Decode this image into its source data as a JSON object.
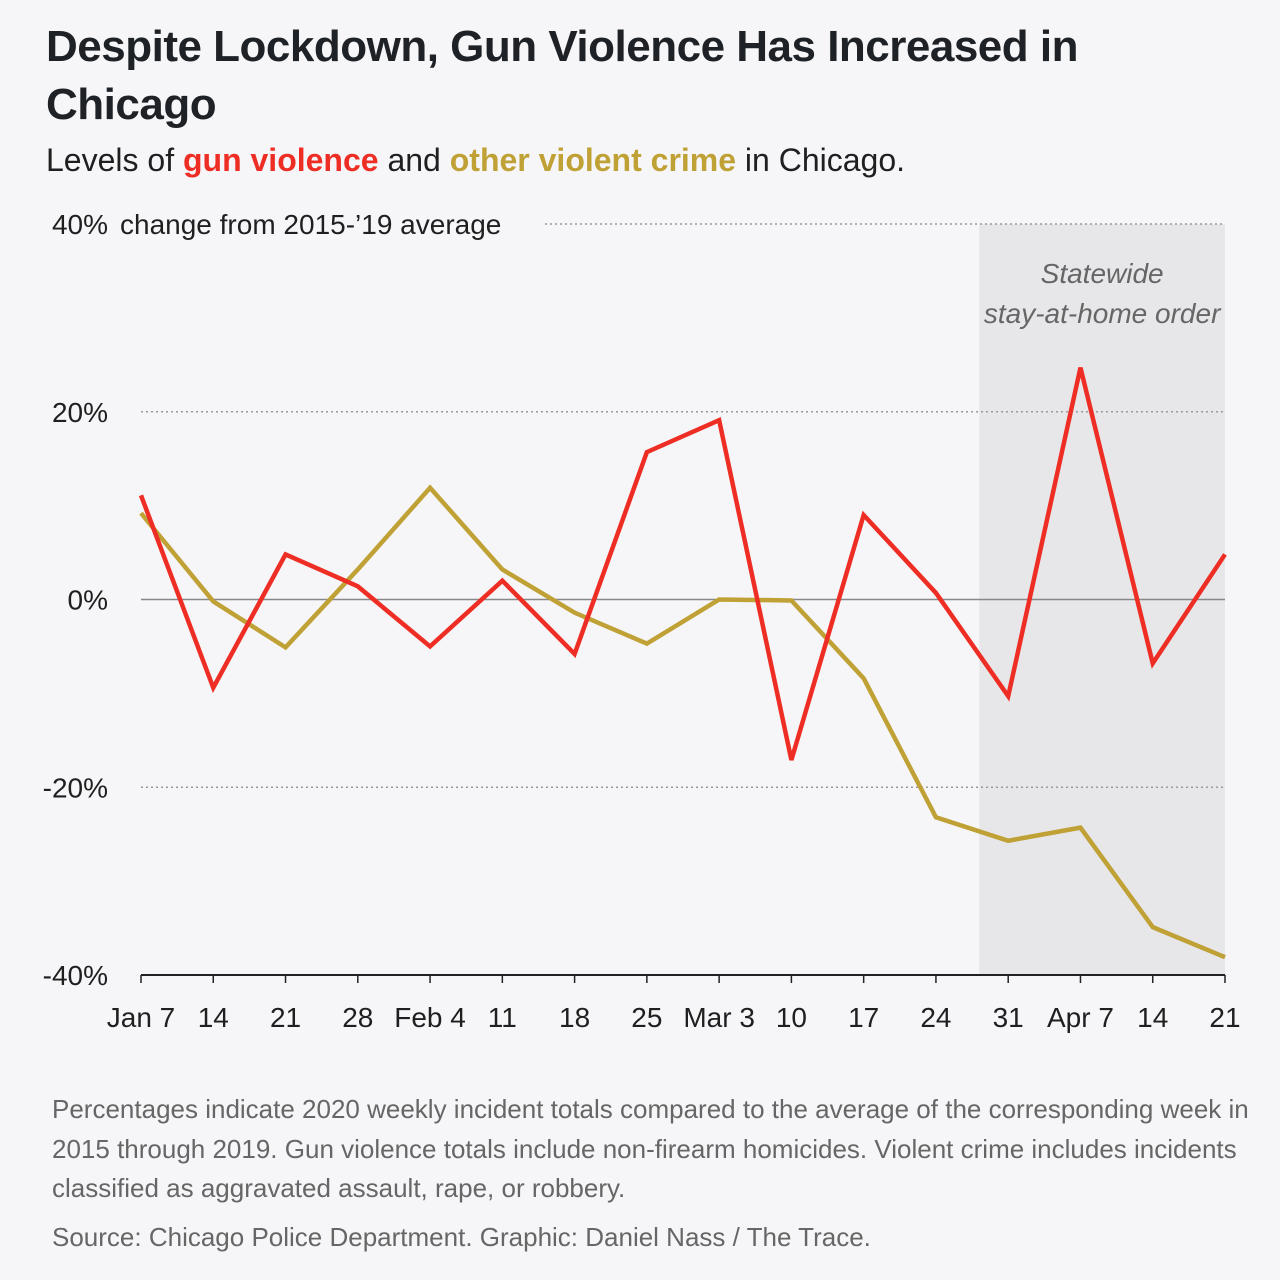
{
  "title": "Despite Lockdown, Gun Violence Has Increased in Chicago",
  "subtitle": {
    "prefix": "Levels of ",
    "series1": "gun violence",
    "middle": " and ",
    "series2": "other violent crime",
    "suffix": " in Chicago."
  },
  "notes": "Percentages indicate 2020 weekly incident totals compared to the average of the corresponding week in 2015 through 2019. Gun violence totals include non-firearm homicides. Violent crime includes incidents classified as aggravated assault, rape, or robbery.",
  "source": "Source: Chicago Police Department. Graphic: Daniel Nass / The Trace.",
  "chart_data": {
    "type": "line",
    "ylabel": "change from 2015-’19 average",
    "ylim": [
      -40,
      40
    ],
    "yticks": [
      40,
      20,
      0,
      -20,
      -40
    ],
    "ytick_labels": [
      "40%",
      "20%",
      "0%",
      "-20%",
      "-40%"
    ],
    "grid": "horizontal dotted",
    "x_tick_labels": [
      "Jan 7",
      "14",
      "21",
      "28",
      "Feb 4",
      "11",
      "18",
      "25",
      "Mar 3",
      "10",
      "17",
      "24",
      "31",
      "Apr 7",
      "14",
      "21"
    ],
    "annotation": {
      "lines": [
        "Statewide",
        "stay-at-home order"
      ],
      "shaded_from_index": 11.6,
      "shaded_to_index": 15
    },
    "series": [
      {
        "name": "gun violence",
        "color": "#ee2e24",
        "values": [
          11.1,
          -9.4,
          4.8,
          1.4,
          -5.0,
          2.0,
          -5.8,
          15.7,
          19.1,
          -17.1,
          9.0,
          0.7,
          -10.3,
          24.7,
          -6.8,
          4.8
        ]
      },
      {
        "name": "other violent crime",
        "color": "#bfa136",
        "values": [
          9.2,
          -0.2,
          -5.1,
          3.2,
          11.9,
          3.2,
          -1.4,
          -4.7,
          0.0,
          -0.1,
          -8.4,
          -23.2,
          -25.7,
          -24.3,
          -34.9,
          -38.1
        ]
      }
    ]
  }
}
